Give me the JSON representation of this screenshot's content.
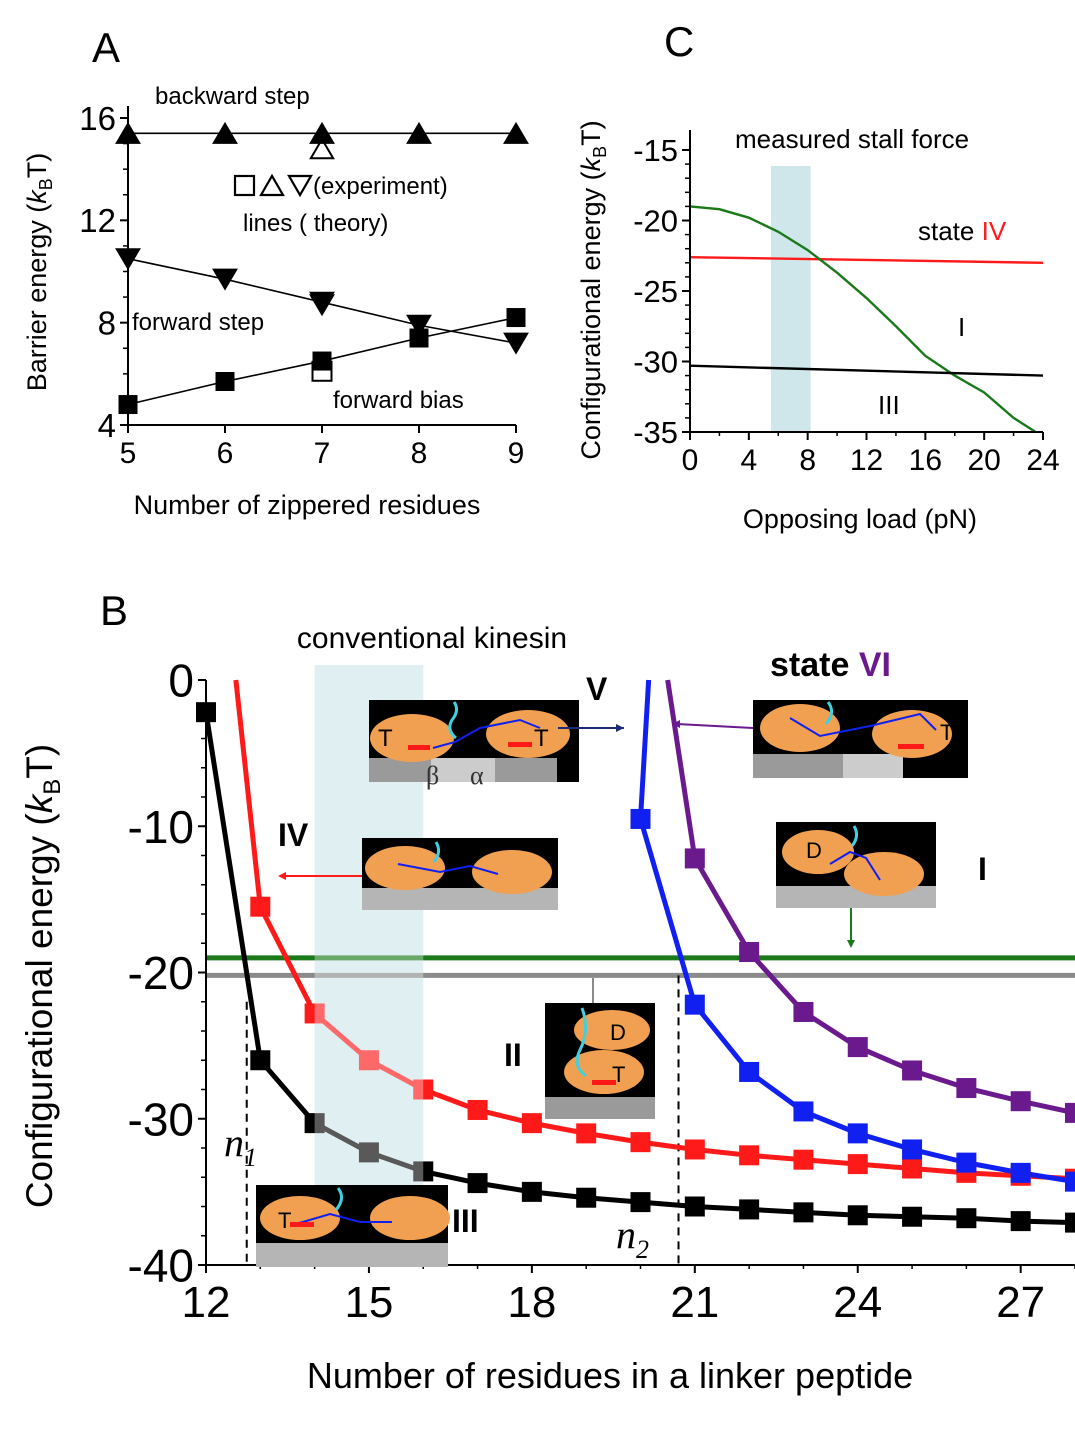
{
  "panels": {
    "A": "A",
    "B": "B",
    "C": "C"
  },
  "colors": {
    "black": "#000000",
    "red": "#ff1a1a",
    "blue": "#1020f0",
    "purple": "#6a1a8c",
    "green": "#1a7a1a",
    "gray": "#8a8a8a",
    "shade": "#cfe6ea"
  },
  "chart_data": [
    {
      "id": "A",
      "type": "line",
      "xlabel": "Number of zippered residues",
      "ylabel": "Barrier energy (kBT)",
      "ylabel_parts": {
        "main": "Barrier energy (",
        "k": "k",
        "sub": "B",
        "tail": "T)"
      },
      "xlim": [
        5,
        9
      ],
      "ylim": [
        4,
        16
      ],
      "xticks": [
        "5",
        "6",
        "7",
        "8",
        "9"
      ],
      "yticks": [
        "4",
        "8",
        "12",
        "16"
      ],
      "x": [
        5,
        6,
        7,
        8,
        9
      ],
      "series": [
        {
          "name": "backward step",
          "marker": "triangle-up",
          "values": [
            15.4,
            15.4,
            15.4,
            15.4,
            15.4
          ]
        },
        {
          "name": "forward step",
          "marker": "triangle-down",
          "values": [
            10.5,
            9.7,
            8.8,
            7.9,
            7.2
          ]
        },
        {
          "name": "forward bias",
          "marker": "square",
          "values": [
            4.8,
            5.7,
            6.5,
            7.4,
            8.2
          ]
        }
      ],
      "experiment": [
        {
          "marker": "triangle-up",
          "x": 7,
          "y": 14.8
        },
        {
          "marker": "triangle-down",
          "x": 7,
          "y": 8.7
        },
        {
          "marker": "square",
          "x": 7,
          "y": 6.1
        }
      ],
      "annotations": {
        "experiment_label": "(experiment)",
        "theory_label": "lines ( theory)"
      }
    },
    {
      "id": "C",
      "type": "line",
      "xlabel": "Opposing load (pN)",
      "ylabel": "Configurational energy (kBT)",
      "xlim": [
        0,
        24
      ],
      "ylim": [
        -35,
        -15
      ],
      "xticks": [
        "0",
        "4",
        "8",
        "12",
        "16",
        "20",
        "24"
      ],
      "yticks": [
        "-35",
        "-30",
        "-25",
        "-20",
        "-15"
      ],
      "shaded_region": {
        "label": "measured stall force",
        "x": [
          5.5,
          8.2
        ]
      },
      "series": [
        {
          "name": "IV",
          "x": [
            0,
            24
          ],
          "values": [
            -22.6,
            -23.0
          ]
        },
        {
          "name": "I",
          "x": [
            0,
            2,
            4,
            6,
            8,
            10,
            12,
            14,
            16,
            18,
            20,
            22,
            23.5
          ],
          "values": [
            -19.0,
            -19.2,
            -19.8,
            -20.8,
            -22.1,
            -23.7,
            -25.5,
            -27.5,
            -29.6,
            -31.0,
            -32.2,
            -34.0,
            -35.0
          ]
        },
        {
          "name": "III",
          "x": [
            0,
            24
          ],
          "values": [
            -30.3,
            -31.0
          ]
        }
      ],
      "labels": {
        "state_word": "state",
        "IV": "IV",
        "I": "I",
        "III": "III"
      }
    },
    {
      "id": "B",
      "type": "line",
      "xlabel": "Number of residues in a linker peptide",
      "ylabel": "Configurational energy (kBT)",
      "xlim": [
        12,
        28
      ],
      "ylim": [
        -40,
        0
      ],
      "xticks": [
        "12",
        "15",
        "18",
        "21",
        "24",
        "27"
      ],
      "yticks": [
        "-40",
        "-30",
        "-20",
        "-10",
        "0"
      ],
      "shaded_region": {
        "label": "conventional kinesin",
        "x": [
          14,
          16
        ]
      },
      "hlines": [
        {
          "name": "I",
          "y": -19.0
        },
        {
          "name": "II",
          "y": -20.2
        }
      ],
      "vlines": [
        {
          "label": "n1",
          "x": 12.75,
          "y_top": -22
        },
        {
          "label": "n2",
          "x": 20.7,
          "y_top": -20.2
        }
      ],
      "series": [
        {
          "name": "III",
          "x": [
            12,
            13,
            14,
            15,
            16,
            17,
            18,
            19,
            20,
            21,
            22,
            23,
            24,
            25,
            26,
            27,
            28
          ],
          "values": [
            -2.2,
            -26.0,
            -30.3,
            -32.3,
            -33.6,
            -34.4,
            -35.0,
            -35.4,
            -35.7,
            -36.0,
            -36.2,
            -36.4,
            -36.6,
            -36.7,
            -36.8,
            -37.0,
            -37.1
          ]
        },
        {
          "name": "IV",
          "x": [
            13,
            14,
            15,
            16,
            17,
            18,
            19,
            20,
            21,
            22,
            23,
            24,
            25,
            26,
            27,
            28
          ],
          "values": [
            -15.5,
            -22.8,
            -26.0,
            -28.0,
            -29.4,
            -30.3,
            -31.0,
            -31.6,
            -32.1,
            -32.5,
            -32.8,
            -33.1,
            -33.4,
            -33.7,
            -33.9,
            -34.1
          ]
        },
        {
          "name": "V",
          "x": [
            20,
            21,
            22,
            23,
            24,
            25,
            26,
            27,
            28
          ],
          "values": [
            -9.5,
            -22.2,
            -26.8,
            -29.5,
            -31.0,
            -32.1,
            -33.0,
            -33.7,
            -34.3
          ]
        },
        {
          "name": "VI",
          "x": [
            21,
            22,
            23,
            24,
            25,
            26,
            27,
            28
          ],
          "values": [
            -12.2,
            -18.6,
            -22.7,
            -25.1,
            -26.7,
            -27.9,
            -28.8,
            -29.6
          ]
        }
      ],
      "labels": {
        "state_word": "state",
        "VI": "VI",
        "V": "V",
        "IV": "IV",
        "III": "III",
        "II": "II",
        "I": "I",
        "n1": "n",
        "n1_sub": "1",
        "n2": "n",
        "n2_sub": "2"
      },
      "insets": {
        "T": "T",
        "D": "D",
        "beta": "β",
        "alpha": "α"
      }
    }
  ]
}
